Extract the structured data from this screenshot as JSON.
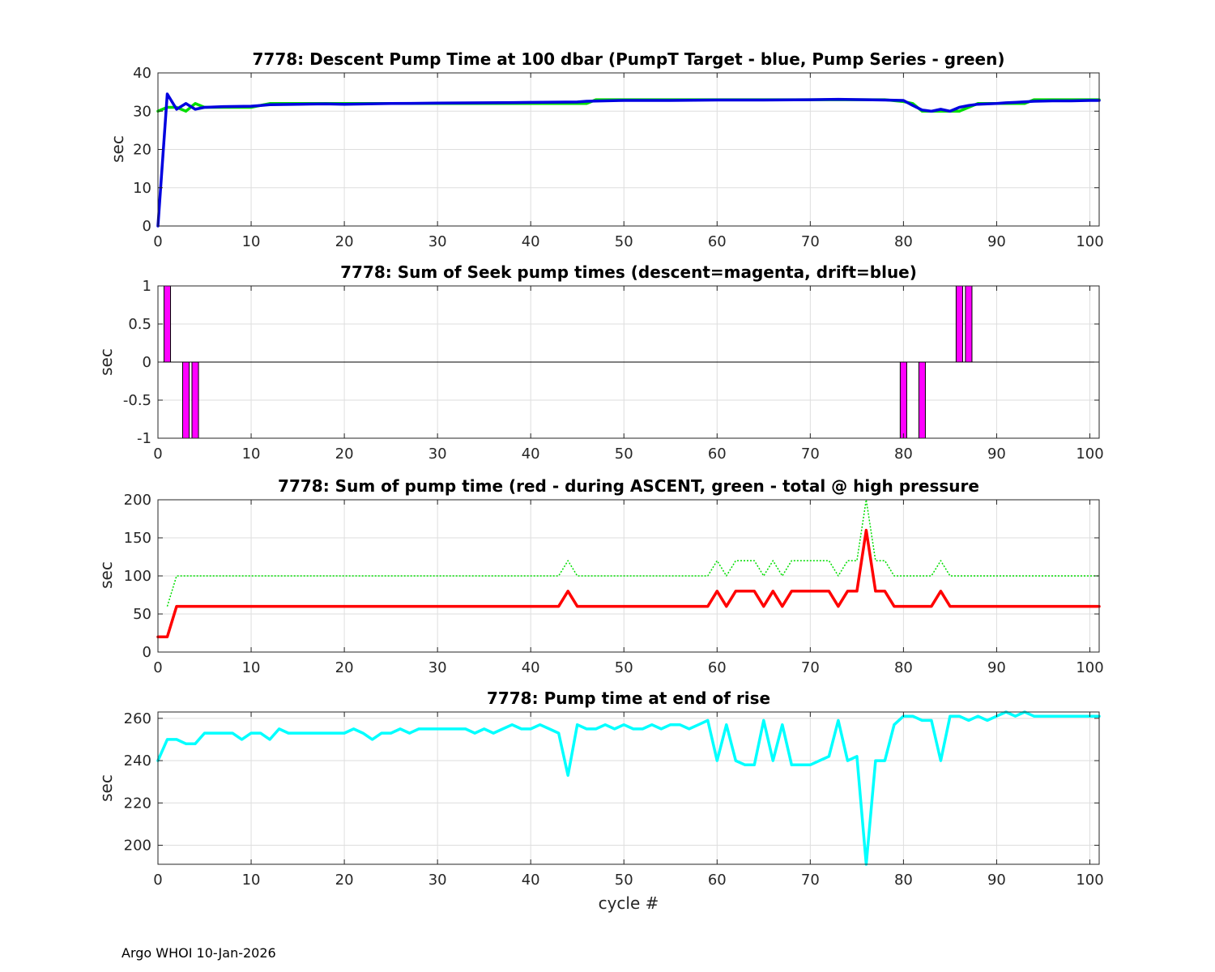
{
  "footer": "Argo WHOI 10-Jan-2026",
  "chart_data": [
    {
      "type": "line",
      "title": "7778: Descent Pump Time at 100 dbar (PumpT Target - blue, Pump Series - green)",
      "xlabel": "",
      "ylabel": "sec",
      "xlim": [
        0,
        101
      ],
      "ylim": [
        0,
        40
      ],
      "xticks": [
        0,
        10,
        20,
        30,
        40,
        50,
        60,
        70,
        80,
        90,
        100
      ],
      "yticks": [
        0,
        10,
        20,
        30,
        40
      ],
      "grid": true,
      "series": [
        {
          "color": "#00dd00",
          "style": "solid",
          "x": [
            0,
            1,
            2,
            3,
            4,
            5,
            10,
            12,
            20,
            46,
            47,
            78,
            80,
            81,
            82,
            84,
            86,
            87,
            88,
            90,
            93,
            94,
            101
          ],
          "y": [
            30,
            31,
            31,
            30,
            32,
            31,
            31,
            32,
            32,
            32,
            33,
            33,
            32.5,
            32,
            30,
            30,
            30,
            31,
            32,
            32,
            32,
            33,
            33
          ]
        },
        {
          "color": "#0000e0",
          "style": "solid",
          "x": [
            0,
            1,
            2,
            3,
            4,
            5,
            7,
            10,
            11,
            12,
            15,
            18,
            20,
            25,
            30,
            35,
            40,
            45,
            46,
            50,
            55,
            60,
            65,
            70,
            73,
            76,
            78,
            80,
            81,
            82,
            83,
            84,
            85,
            86,
            87,
            88,
            90,
            91,
            92,
            94,
            96,
            98,
            100,
            101
          ],
          "y": [
            0,
            34.5,
            30.5,
            32,
            30.5,
            31,
            31.2,
            31.3,
            31.5,
            31.7,
            31.8,
            31.9,
            31.8,
            32,
            32.1,
            32.2,
            32.3,
            32.4,
            32.6,
            32.8,
            32.8,
            32.9,
            32.9,
            33,
            33.1,
            33,
            32.9,
            32.8,
            31.5,
            30.3,
            30,
            30.5,
            30,
            31,
            31.5,
            31.8,
            32,
            32.2,
            32.3,
            32.6,
            32.7,
            32.7,
            32.8,
            32.8
          ]
        }
      ]
    },
    {
      "type": "bar",
      "title": "7778: Sum of Seek pump times (descent=magenta, drift=blue)",
      "xlabel": "",
      "ylabel": "sec",
      "xlim": [
        0,
        101
      ],
      "ylim": [
        -1,
        1
      ],
      "xticks": [
        0,
        10,
        20,
        30,
        40,
        50,
        60,
        70,
        80,
        90,
        100
      ],
      "yticks": [
        -1,
        -0.5,
        0,
        0.5,
        1
      ],
      "ytick_labels": [
        "-1",
        "-0.5",
        "0",
        "0.5",
        "1"
      ],
      "grid": true,
      "bar_color": "#ff00ff",
      "bar_width": 0.7,
      "x": [
        1,
        3,
        4,
        80,
        82,
        86,
        87
      ],
      "values": [
        1,
        -1,
        -1,
        -1,
        -1,
        1,
        1
      ]
    },
    {
      "type": "line",
      "title": "7778: Sum of pump time (red - during ASCENT, green - total @ high pressure",
      "xlabel": "",
      "ylabel": "sec",
      "xlim": [
        0,
        101
      ],
      "ylim": [
        0,
        200
      ],
      "xticks": [
        0,
        10,
        20,
        30,
        40,
        50,
        60,
        70,
        80,
        90,
        100
      ],
      "yticks": [
        0,
        50,
        100,
        150,
        200
      ],
      "grid": true,
      "series": [
        {
          "color": "#00dd00",
          "style": "dotted",
          "x": [
            1,
            2,
            43,
            44,
            45,
            59,
            60,
            61,
            62,
            64,
            65,
            66,
            67,
            68,
            71,
            72,
            73,
            74,
            75,
            76,
            77,
            78,
            79,
            83,
            84,
            85,
            101
          ],
          "y": [
            60,
            100,
            100,
            120,
            100,
            100,
            120,
            100,
            120,
            120,
            100,
            120,
            100,
            120,
            120,
            120,
            100,
            120,
            120,
            200,
            120,
            120,
            100,
            100,
            120,
            100,
            100
          ]
        },
        {
          "color": "#ff0000",
          "style": "solid",
          "x": [
            0,
            1,
            2,
            43,
            44,
            45,
            59,
            60,
            61,
            62,
            64,
            65,
            66,
            67,
            68,
            72,
            73,
            74,
            75,
            76,
            77,
            78,
            79,
            83,
            84,
            85,
            101
          ],
          "y": [
            20,
            20,
            60,
            60,
            80,
            60,
            60,
            80,
            60,
            80,
            80,
            60,
            80,
            60,
            80,
            80,
            60,
            80,
            80,
            160,
            80,
            80,
            60,
            60,
            80,
            60,
            60
          ]
        }
      ]
    },
    {
      "type": "line",
      "title": "7778: Pump time at end of rise",
      "xlabel": "cycle #",
      "ylabel": "sec",
      "xlim": [
        0,
        101
      ],
      "ylim": [
        191,
        263
      ],
      "xticks": [
        0,
        10,
        20,
        30,
        40,
        50,
        60,
        70,
        80,
        90,
        100
      ],
      "yticks": [
        200,
        220,
        240,
        260
      ],
      "grid": true,
      "series": [
        {
          "color": "#00ffff",
          "style": "solid",
          "x": [
            0,
            1,
            2,
            3,
            4,
            5,
            8,
            9,
            10,
            11,
            12,
            13,
            14,
            20,
            21,
            22,
            23,
            24,
            25,
            26,
            27,
            28,
            33,
            34,
            35,
            36,
            37,
            38,
            39,
            40,
            41,
            42,
            43,
            44,
            45,
            46,
            47,
            48,
            49,
            50,
            51,
            52,
            53,
            54,
            55,
            56,
            57,
            58,
            59,
            60,
            61,
            62,
            63,
            64,
            65,
            66,
            67,
            68,
            69,
            70,
            72,
            73,
            74,
            75,
            76,
            77,
            78,
            79,
            80,
            81,
            82,
            83,
            84,
            85,
            86,
            87,
            88,
            89,
            90,
            91,
            92,
            93,
            94,
            101
          ],
          "y": [
            240,
            250,
            250,
            248,
            248,
            253,
            253,
            250,
            253,
            253,
            250,
            255,
            253,
            253,
            255,
            253,
            250,
            253,
            253,
            255,
            253,
            255,
            255,
            253,
            255,
            253,
            255,
            257,
            255,
            255,
            257,
            255,
            253,
            233,
            257,
            255,
            255,
            257,
            255,
            257,
            255,
            255,
            257,
            255,
            257,
            257,
            255,
            257,
            259,
            240,
            257,
            240,
            238,
            238,
            259,
            240,
            257,
            238,
            238,
            238,
            242,
            259,
            240,
            242,
            191,
            240,
            240,
            257,
            261,
            261,
            259,
            259,
            240,
            261,
            261,
            259,
            261,
            259,
            261,
            263,
            261,
            263,
            261,
            261
          ]
        }
      ]
    }
  ]
}
